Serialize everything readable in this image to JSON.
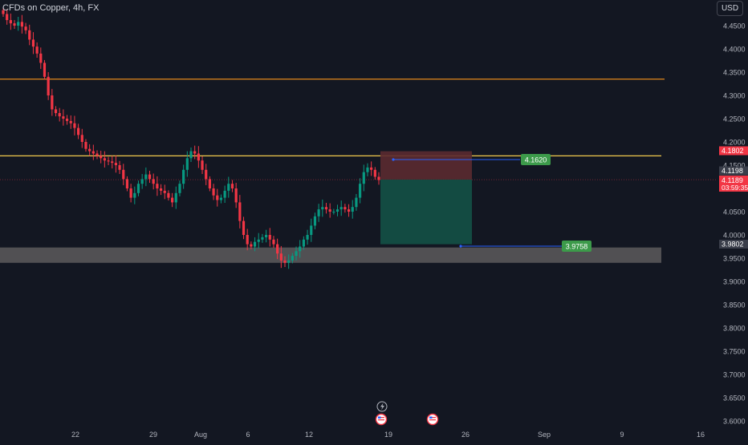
{
  "header": {
    "symbol_title": "CFDs on Copper, 4h, FX",
    "currency": "USD"
  },
  "colors": {
    "background": "#131722",
    "up": "#089981",
    "down": "#f23645",
    "resistance_line": "#f2c94c",
    "orange_line": "#f7931a",
    "support_zone": "#5d5a5c",
    "stop_zone": "#5b2a30",
    "target_zone": "#134e45",
    "label_green": "#3c9a4a",
    "price_red": "#f23645",
    "label_gray": "#3a3e4a",
    "leader_line": "#2962ff"
  },
  "chart_data": {
    "type": "candlestick",
    "title": "CFDs on Copper, 4h, FX",
    "y_axis": {
      "ticks": [
        "4.4500",
        "4.4000",
        "4.3500",
        "4.3000",
        "4.2500",
        "4.2000",
        "4.1500",
        "4.1000",
        "4.0500",
        "4.0000",
        "3.9500",
        "3.9000",
        "3.8500",
        "3.8000",
        "3.7500",
        "3.7000",
        "3.6500",
        "3.6000"
      ],
      "ylim": [
        3.595,
        4.48
      ]
    },
    "x_axis": {
      "ticks": [
        "22",
        "29",
        "Aug",
        "6",
        "12",
        "19",
        "26",
        "Sep",
        "9",
        "16"
      ]
    },
    "series_close_path": [
      4.475,
      4.462,
      4.455,
      4.45,
      4.458,
      4.448,
      4.44,
      4.42,
      4.405,
      4.39,
      4.37,
      4.34,
      4.3,
      4.27,
      4.262,
      4.255,
      4.25,
      4.245,
      4.24,
      4.23,
      4.215,
      4.2,
      4.185,
      4.18,
      4.175,
      4.17,
      4.165,
      4.16,
      4.158,
      4.155,
      4.15,
      4.14,
      4.12,
      4.1,
      4.08,
      4.09,
      4.11,
      4.12,
      4.13,
      4.12,
      4.11,
      4.1,
      4.095,
      4.09,
      4.08,
      4.07,
      4.09,
      4.11,
      4.14,
      4.165,
      4.18,
      4.175,
      4.16,
      4.14,
      4.12,
      4.1,
      4.085,
      4.075,
      4.08,
      4.095,
      4.11,
      4.1,
      4.07,
      4.03,
      4.0,
      3.98,
      3.975,
      3.985,
      3.99,
      3.995,
      4.0,
      3.99,
      3.98,
      3.96,
      3.945,
      3.94,
      3.945,
      3.955,
      3.965,
      3.975,
      3.99,
      4.0,
      4.02,
      4.04,
      4.055,
      4.06,
      4.055,
      4.05,
      4.05,
      4.055,
      4.06,
      4.055,
      4.05,
      4.06,
      4.08,
      4.11,
      4.135,
      4.145,
      4.14,
      4.125,
      4.118
    ],
    "levels": {
      "orange_line": 4.335,
      "resistance_line": 4.17,
      "support_zone": [
        3.94,
        3.973
      ],
      "stop_zone": [
        4.119,
        4.18
      ],
      "target_zone": [
        3.98,
        4.119
      ]
    },
    "price_labels": {
      "stop": "4.1802",
      "last": "4.1198",
      "current": "4.1189",
      "countdown": "03:59:35",
      "target": "3.9802"
    },
    "callouts": {
      "upper": "4.1620",
      "lower": "3.9758"
    }
  }
}
